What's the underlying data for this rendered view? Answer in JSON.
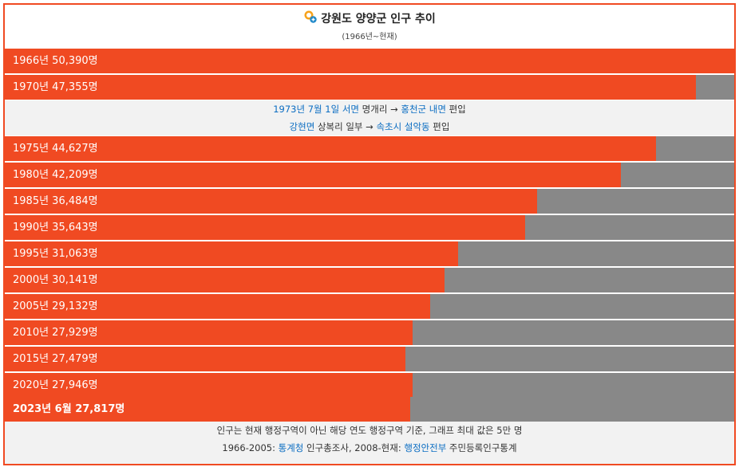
{
  "title": "강원도 양양군 인구 추이",
  "subtitle": "(1966년~현재)",
  "icon": "search-globe-icon",
  "colors": {
    "bar": "#f04a22",
    "remainder": "#888888",
    "link": "#0b6dc2"
  },
  "chart_data": {
    "type": "bar",
    "orientation": "horizontal",
    "title": "강원도 양양군 인구 추이",
    "subtitle": "(1966년~현재)",
    "xlim": [
      0,
      50000
    ],
    "unit": "명",
    "categories": [
      "1966년",
      "1970년",
      "1975년",
      "1980년",
      "1985년",
      "1990년",
      "1995년",
      "2000년",
      "2005년",
      "2010년",
      "2015년",
      "2020년",
      "2023년 6월"
    ],
    "values": [
      50390,
      47355,
      44627,
      42209,
      36484,
      35643,
      31063,
      30141,
      29132,
      27929,
      27479,
      27946,
      27817
    ],
    "labels": [
      "1966년 50,390명",
      "1970년 47,355명",
      "1975년 44,627명",
      "1980년 42,209명",
      "1985년 36,484명",
      "1990년 35,643명",
      "1995년 31,063명",
      "2000년 30,141명",
      "2005년 29,132명",
      "2010년 27,929명",
      "2015년 27,479명",
      "2020년 27,946명",
      "2023년 6월 27,817명"
    ]
  },
  "note": {
    "line1": {
      "a": "1973년 7월 1일 서면",
      "b": " 명개리 → ",
      "c": "홍천군 내면",
      "d": " 편입"
    },
    "line2": {
      "a": "강현면",
      "b": " 상복리 일부 → ",
      "c": "속초시 설악동",
      "d": " 편입"
    }
  },
  "footer": {
    "line1": "인구는 현재 행정구역이 아닌 해당 연도 행정구역 기준, 그래프 최대 값은 5만 명",
    "line2": {
      "a": "1966-2005: ",
      "b": "통계청",
      "c": " 인구총조사, 2008-현재: ",
      "d": "행정안전부",
      "e": " 주민등록인구통계"
    }
  }
}
